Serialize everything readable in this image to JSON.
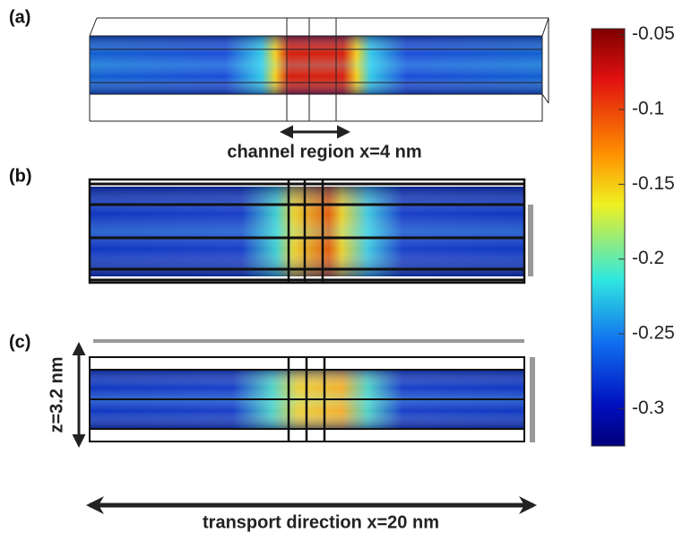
{
  "panels": [
    {
      "label": "(a)",
      "annotation": "channel region x=4 nm"
    },
    {
      "label": "(b)"
    },
    {
      "label": "(c)",
      "annotation": "z=3.2 nm"
    }
  ],
  "footer": "transport direction x=20 nm",
  "colorbar": {
    "lim": [
      -0.325,
      -0.046
    ],
    "ticks": [
      -0.05,
      -0.1,
      -0.15,
      -0.2,
      -0.25,
      -0.3
    ]
  }
}
